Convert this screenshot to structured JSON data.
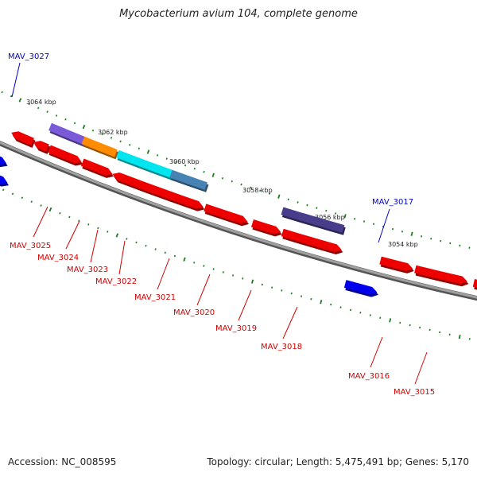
{
  "title": "Mycobacterium avium 104, complete genome",
  "accession": "Accession: NC_008595",
  "summary": "Topology: circular; Length: 5,475,491 bp; Genes: 5,170",
  "colors": {
    "backbone": "#808080",
    "tick": "#1a7a1a",
    "label_red": "#d40000",
    "label_blue": "#0000cc"
  },
  "kbp_labels": [
    "3064 kbp",
    "3062 kbp",
    "3060 kbp",
    "3058 kbp",
    "3056 kbp",
    "3054 kbp"
  ],
  "genes": [
    {
      "name": "MAV_3027",
      "color": "#0000ee",
      "label_color": "#0000cc"
    },
    {
      "name": "MAV_3025",
      "color": "#7a5ad8",
      "label_color": "#d40000"
    },
    {
      "name": "MAV_3024",
      "color": "#ff8c00",
      "label_color": "#d40000"
    },
    {
      "name": "MAV_3023",
      "color": "#ee0000",
      "label_color": "#d40000"
    },
    {
      "name": "MAV_3022",
      "color": "#00e5ee",
      "label_color": "#d40000"
    },
    {
      "name": "MAV_3021",
      "color": "#4682b4",
      "label_color": "#d40000"
    },
    {
      "name": "MAV_3020",
      "color": "#ee0000",
      "label_color": "#d40000"
    },
    {
      "name": "MAV_3019",
      "color": "#ee0000",
      "label_color": "#d40000"
    },
    {
      "name": "MAV_3018",
      "color": "#483d8b",
      "label_color": "#d40000"
    },
    {
      "name": "MAV_3017",
      "color": "#0000ee",
      "label_color": "#0000cc"
    },
    {
      "name": "MAV_3016",
      "color": "#ee0000",
      "label_color": "#d40000"
    },
    {
      "name": "MAV_3015",
      "color": "#ee0000",
      "label_color": "#d40000"
    }
  ]
}
